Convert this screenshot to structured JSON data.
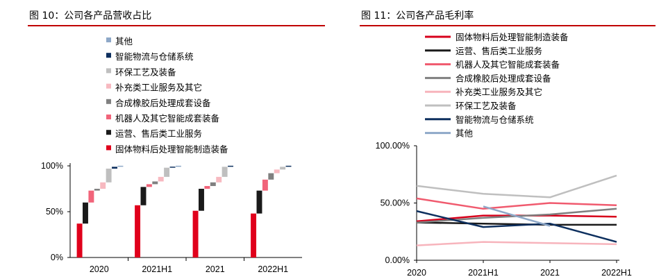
{
  "left": {
    "title": "图 10：公司各产品营收占比"
  },
  "right": {
    "title": "图 11：公司各产品毛利率"
  },
  "chart_data": [
    {
      "type": "bar",
      "title": "图 10：公司各产品营收占比",
      "subtype": "stacked-waterfall",
      "categories": [
        "2020",
        "2021H1",
        "2021",
        "2022H1"
      ],
      "y_ticks": [
        "0%",
        "50%",
        "100%"
      ],
      "ylim": [
        0,
        100
      ],
      "legend_order": [
        "其他",
        "智能物流与仓储系统",
        "环保工艺及装备",
        "补充类工业服务及其它",
        "合成橡胶后处理成套设备",
        "机器人及其它智能成套装备",
        "运营、售后类工业服务",
        "固体物料后处理智能制造装备"
      ],
      "series": [
        {
          "name": "固体物料后处理智能制造装备",
          "color": "#e0001b",
          "values": [
            37,
            57,
            51,
            48
          ]
        },
        {
          "name": "运营、售后类工业服务",
          "color": "#1a1a1a",
          "values": [
            23,
            20,
            24,
            25
          ]
        },
        {
          "name": "机器人及其它智能成套装备",
          "color": "#f1647a",
          "values": [
            13,
            3,
            3,
            12
          ]
        },
        {
          "name": "合成橡胶后处理成套设备",
          "color": "#808080",
          "values": [
            2,
            3,
            4,
            7
          ]
        },
        {
          "name": "补充类工业服务及其它",
          "color": "#f7b9c0",
          "values": [
            7,
            5,
            6,
            4
          ]
        },
        {
          "name": "环保工艺及装备",
          "color": "#bfbfbf",
          "values": [
            15,
            10,
            11,
            3
          ]
        },
        {
          "name": "智能物流与仓储系统",
          "color": "#0d2f5e",
          "values": [
            2,
            1,
            1,
            1
          ]
        },
        {
          "name": "其他",
          "color": "#8ea8c8",
          "values": [
            1,
            1,
            0,
            0
          ]
        }
      ]
    },
    {
      "type": "line",
      "title": "图 11：公司各产品毛利率",
      "x": [
        "2020",
        "2021H1",
        "2021",
        "2022H1"
      ],
      "y_ticks": [
        "0.00%",
        "50.00%",
        "100.00%"
      ],
      "ylim": [
        0,
        100
      ],
      "series": [
        {
          "name": "固体物料后处理智能制造装备",
          "color": "#d7001b",
          "values": [
            34,
            39,
            39,
            38
          ]
        },
        {
          "name": "运营、售后类工业服务",
          "color": "#1a1a1a",
          "values": [
            33,
            32,
            31,
            31
          ]
        },
        {
          "name": "机器人及其它智能成套装备",
          "color": "#f05a6e",
          "values": [
            54,
            45,
            50,
            48
          ]
        },
        {
          "name": "合成橡胶后处理成套设备",
          "color": "#7f7f7f",
          "values": [
            33,
            37,
            40,
            45
          ]
        },
        {
          "name": "补充类工业服务及其它",
          "color": "#f7b4bc",
          "values": [
            13,
            16,
            15,
            14
          ]
        },
        {
          "name": "环保工艺及装备",
          "color": "#bfbfbf",
          "values": [
            65,
            58,
            55,
            74
          ]
        },
        {
          "name": "智能物流与仓储系统",
          "color": "#0d2f5e",
          "values": [
            43,
            29,
            32,
            16
          ]
        },
        {
          "name": "其他",
          "color": "#8ea8c8",
          "values": [
            null,
            47,
            30,
            null
          ]
        }
      ]
    }
  ]
}
